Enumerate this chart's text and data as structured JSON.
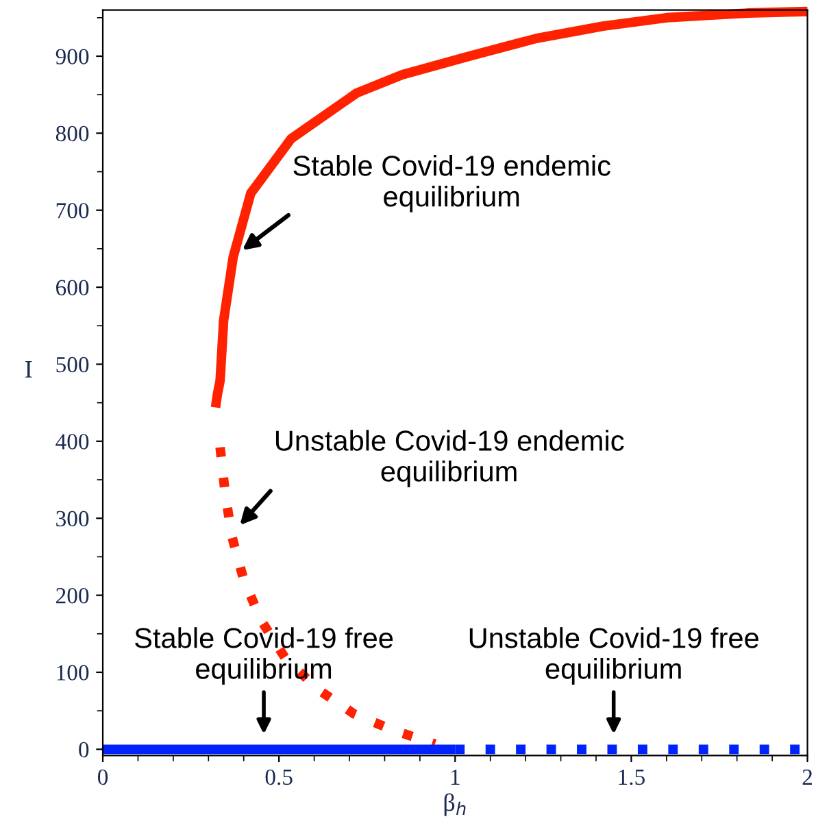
{
  "chart_data": {
    "type": "line",
    "xlabel": "β$_{h}$",
    "ylabel": "I",
    "xlim": [
      0,
      2
    ],
    "ylim": [
      -8,
      960
    ],
    "xticks": [
      0,
      0.5,
      1,
      1.5,
      2
    ],
    "yticks": [
      0,
      100,
      200,
      300,
      400,
      500,
      600,
      700,
      800,
      900
    ],
    "grid": false,
    "series": [
      {
        "line_style": "solid",
        "color": "#ff2200",
        "x": [
          0.32,
          0.325,
          0.333,
          0.343,
          0.37,
          0.42,
          0.535,
          0.72,
          0.85,
          1.04,
          1.23,
          1.42,
          1.6,
          1.83,
          2.0
        ],
        "values": [
          444,
          460,
          479,
          557,
          639,
          722,
          793,
          852,
          876,
          900,
          923,
          939,
          950,
          956,
          958
        ]
      },
      {
        "line_style": "dotted",
        "color": "#ff2200",
        "x": [
          0.333,
          0.347,
          0.366,
          0.4,
          0.45,
          0.517,
          0.61,
          0.713,
          0.823,
          0.943
        ],
        "values": [
          392,
          334,
          277,
          220,
          167,
          119,
          78,
          46,
          25,
          7
        ]
      },
      {
        "line_style": "solid",
        "color": "#0022ff",
        "x": [
          0,
          1
        ],
        "values": [
          0,
          0
        ]
      },
      {
        "line_style": "dotted",
        "color": "#0022ff",
        "x": [
          1,
          2
        ],
        "values": [
          0,
          0
        ]
      }
    ],
    "annotations": [
      {
        "text": "Stable Covid-19 endemic\nequilibrium",
        "x": 0.396,
        "y": 648
      },
      {
        "text": "Unstable Covid-19 endemic\nequilibrium",
        "x": 0.389,
        "y": 291
      },
      {
        "text": "Stable Covid-19 free\nequilibrium",
        "x": 0.457,
        "y": 0
      },
      {
        "text": "Unstable Covid-19 free\nequilibrium",
        "x": 1.45,
        "y": 0
      }
    ]
  }
}
